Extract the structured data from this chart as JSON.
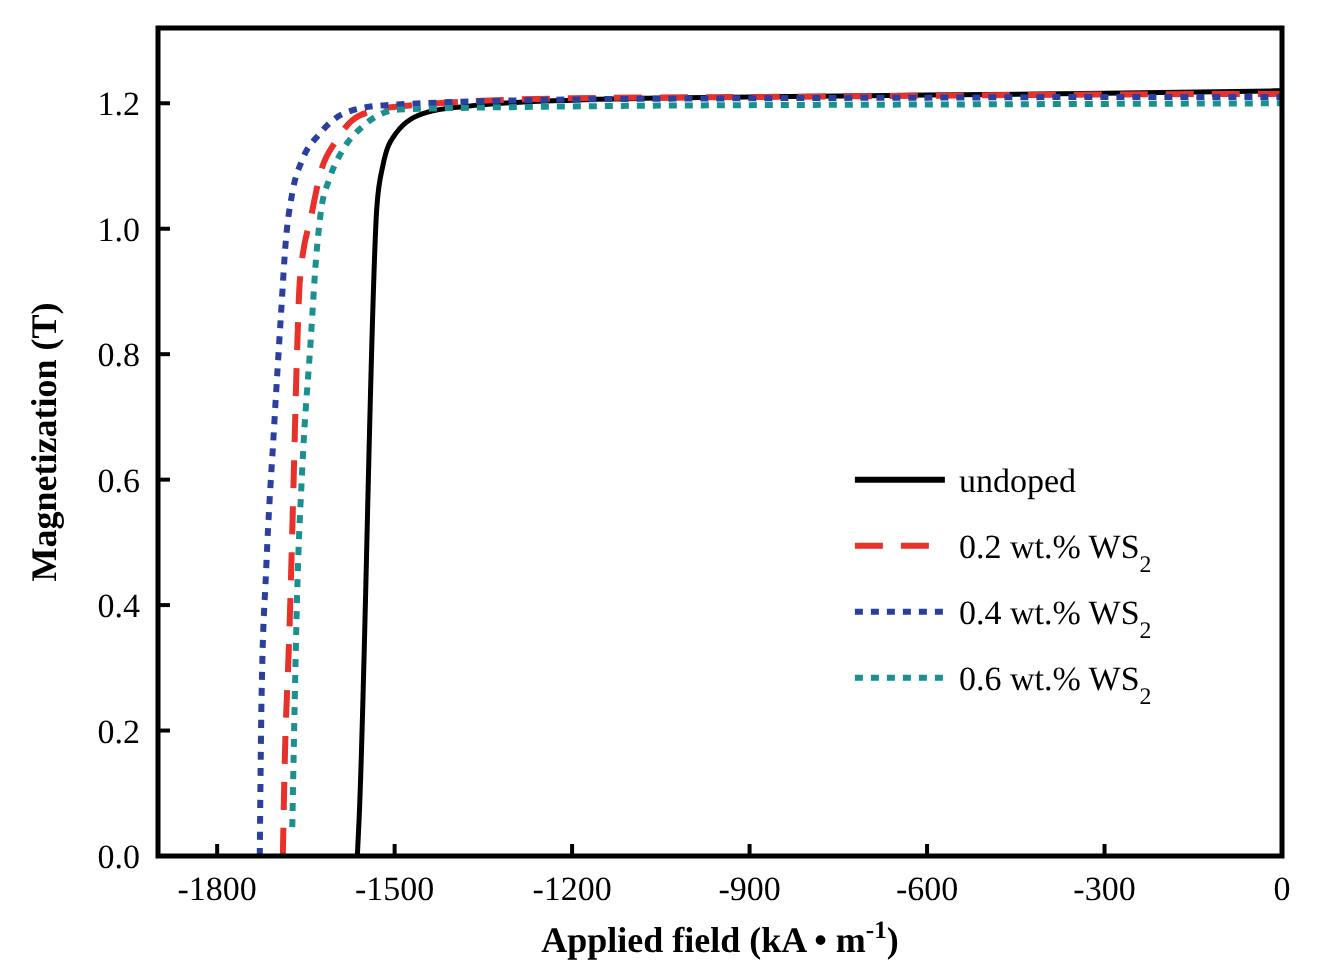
{
  "chart_data": {
    "type": "line",
    "xlabel": "Applied field (kA • m$^{-1}$)",
    "ylabel": "Magnetization (T)",
    "xlim": [
      -1900,
      0
    ],
    "ylim": [
      0,
      1.32
    ],
    "xticks": [
      -1800,
      -1500,
      -1200,
      -900,
      -600,
      -300,
      0
    ],
    "yticks": [
      {
        "value": 0,
        "label": "0.0"
      },
      0.2,
      0.4,
      0.6,
      0.8,
      {
        "value": 1,
        "label": "1.0"
      },
      1.2
    ],
    "legend": "right",
    "grid": false,
    "series": [
      {
        "name": "undoped",
        "color": "#000000",
        "line_style": "solid",
        "x": [
          -1563,
          -1560,
          -1530,
          -1520,
          -1498,
          -1447,
          -1380,
          -1200,
          -900,
          -600,
          -300,
          0
        ],
        "values": [
          0,
          0.06,
          1.035,
          1.1,
          1.152,
          1.185,
          1.195,
          1.205,
          1.21,
          1.213,
          1.216,
          1.22
        ]
      },
      {
        "name": "0.2 wt.% WS$_{2}$",
        "color": "#e8312b",
        "line_style": "dashed",
        "x": [
          -1689,
          -1686,
          -1678,
          -1671,
          -1666,
          -1660,
          -1640,
          -1625,
          -1599,
          -1560,
          -1493,
          -1200,
          -900,
          -600,
          -300,
          0
        ],
        "values": [
          0,
          0.14,
          0.354,
          0.59,
          0.77,
          0.92,
          1.025,
          1.09,
          1.14,
          1.18,
          1.195,
          1.208,
          1.21,
          1.212,
          1.214,
          1.215
        ]
      },
      {
        "name": "0.4 wt.% WS$_{2}$",
        "color": "#2a3f9e",
        "line_style": "dotted",
        "x": [
          -1728,
          -1725,
          -1717,
          -1704,
          -1692,
          -1684,
          -1673,
          -1656,
          -1628,
          -1583,
          -1515,
          -1200,
          -900,
          -600,
          -300,
          0
        ],
        "values": [
          0,
          0.25,
          0.46,
          0.68,
          0.865,
          0.98,
          1.057,
          1.11,
          1.15,
          1.185,
          1.197,
          1.206,
          1.208,
          1.209,
          1.21,
          1.21
        ]
      },
      {
        "name": "0.6 wt.% WS$_{2}$",
        "color": "#1a9090",
        "line_style": "dotted",
        "x": [
          -1673,
          -1670,
          -1665,
          -1656,
          -1642,
          -1633,
          -1625,
          -1610,
          -1588,
          -1554,
          -1493,
          -1200,
          -900,
          -600,
          -300,
          0
        ],
        "values": [
          0.046,
          0.195,
          0.41,
          0.62,
          0.82,
          0.95,
          1.025,
          1.08,
          1.125,
          1.163,
          1.19,
          1.195,
          1.197,
          1.198,
          1.199,
          1.2
        ]
      }
    ]
  }
}
